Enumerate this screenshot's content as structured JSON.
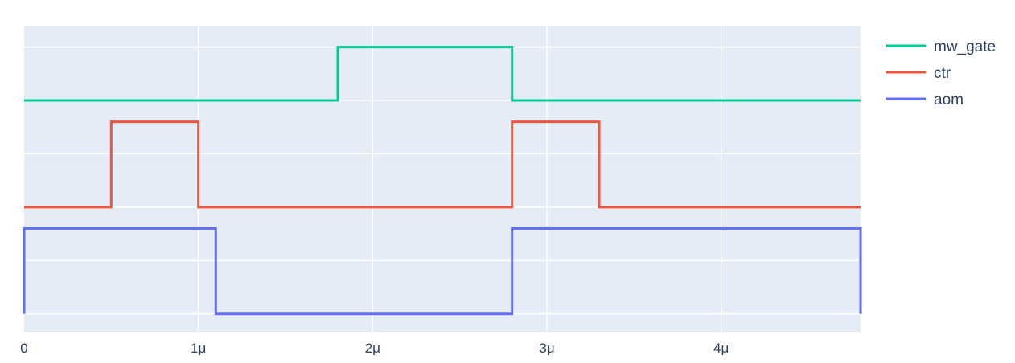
{
  "chart_data": {
    "type": "line",
    "line_shape": "step",
    "x_unit": "microseconds",
    "xlim": [
      0,
      4.8
    ],
    "ylim": [
      -0.35,
      5.4
    ],
    "grid": true,
    "background_color": "#e5ecf6",
    "grid_color": "#ffffff",
    "legend_position": "right",
    "x_ticks": [
      {
        "value": 0,
        "label": "0"
      },
      {
        "value": 1,
        "label": "1μ"
      },
      {
        "value": 2,
        "label": "2μ"
      },
      {
        "value": 3,
        "label": "3μ"
      },
      {
        "value": 4,
        "label": "4μ"
      }
    ],
    "y_grid": [
      0,
      1,
      2,
      3,
      4,
      5
    ],
    "series": [
      {
        "name": "mw_gate",
        "color": "#00cc96",
        "baseline": 4,
        "points": [
          [
            0,
            4
          ],
          [
            1.8,
            4
          ],
          [
            1.8,
            5
          ],
          [
            2.8,
            5
          ],
          [
            2.8,
            4
          ],
          [
            4.8,
            4
          ]
        ]
      },
      {
        "name": "ctr",
        "color": "#ef553b",
        "baseline": 2,
        "points": [
          [
            0,
            2
          ],
          [
            0.5,
            2
          ],
          [
            0.5,
            3.6
          ],
          [
            1.0,
            3.6
          ],
          [
            1.0,
            2
          ],
          [
            2.8,
            2
          ],
          [
            2.8,
            3.6
          ],
          [
            3.3,
            3.6
          ],
          [
            3.3,
            2
          ],
          [
            4.8,
            2
          ]
        ]
      },
      {
        "name": "aom",
        "color": "#636efa",
        "baseline": 0,
        "points": [
          [
            0,
            0
          ],
          [
            0,
            1.6
          ],
          [
            1.1,
            1.6
          ],
          [
            1.1,
            0
          ],
          [
            2.8,
            0
          ],
          [
            2.8,
            1.6
          ],
          [
            4.8,
            1.6
          ],
          [
            4.8,
            0
          ]
        ]
      }
    ]
  }
}
